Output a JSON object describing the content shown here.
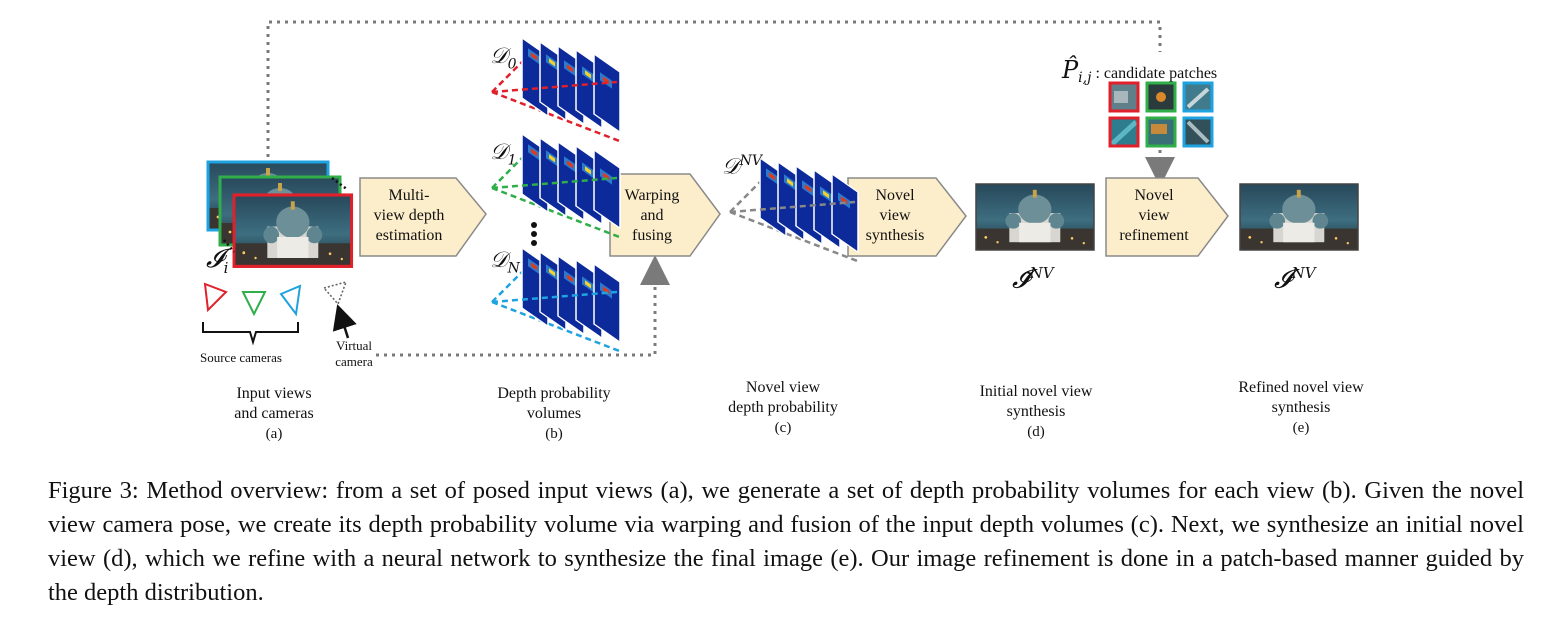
{
  "figure": {
    "input": {
      "symbol_main": "𝓘",
      "symbol_sub": "i",
      "source_cameras_label": "Source cameras",
      "virtual_camera_label_line1": "Virtual",
      "virtual_camera_label_line2": "camera",
      "caption_line1": "Input views",
      "caption_line2": "and cameras",
      "tag": "(a)"
    },
    "mvde_box": {
      "line1": "Multi-",
      "line2": "view depth",
      "line3": "estimation"
    },
    "depth_volumes": {
      "d0_main": "𝒟",
      "d0_sub": "0",
      "d1_main": "𝒟",
      "d1_sub": "1",
      "dn_main": "𝒟",
      "dn_sub": "N",
      "caption_line1": "Depth probability",
      "caption_line2": "volumes",
      "tag": "(b)"
    },
    "warp_box": {
      "line1": "Warping",
      "line2": "and",
      "line3": "fusing"
    },
    "novel_depth": {
      "symbol_main": "𝒟",
      "symbol_sup": "NV",
      "caption_line1": "Novel view",
      "caption_line2": "depth probability",
      "tag": "(c)"
    },
    "synth_box": {
      "line1": "Novel",
      "line2": "view",
      "line3": "synthesis"
    },
    "initial_view": {
      "symbol_main": "𝓘̃",
      "symbol_sup": "NV",
      "caption_line1": "Initial novel view",
      "caption_line2": "synthesis",
      "tag": "(d)"
    },
    "patches": {
      "symbol_main": "P̂",
      "symbol_sub": "i,j",
      "label": ": candidate patches"
    },
    "refine_box": {
      "line1": "Novel",
      "line2": "view",
      "line3": "refinement"
    },
    "refined_view": {
      "symbol_main": "𝓘",
      "symbol_sup": "NV",
      "caption_line1": "Refined novel view",
      "caption_line2": "synthesis",
      "tag": "(e)"
    },
    "colors": {
      "red": "#e0202a",
      "green": "#2fae4a",
      "blue": "#1fa3e0",
      "box_fill": "#fdeecb",
      "box_stroke": "#8a8a8a",
      "volume_blue": "#0c2a9a",
      "dotted": "#7a7a7a"
    }
  },
  "caption": "Figure 3: Method overview: from a set of posed input views (a), we generate a set of depth probability volumes for each view (b). Given the novel view camera pose, we create its depth probability volume via warping and fusion of the input depth volumes (c). Next, we synthesize an initial novel view (d), which we refine with a neural network to synthesize the final image (e). Our image refinement is done in a patch-based manner guided by the depth distribution."
}
